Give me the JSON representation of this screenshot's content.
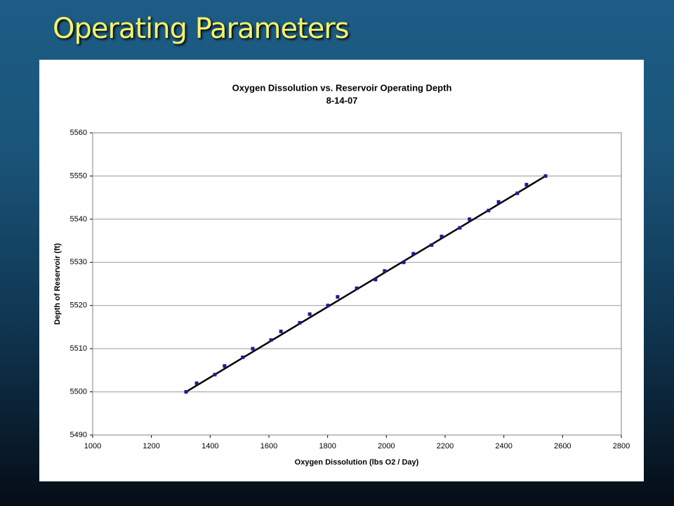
{
  "slide_title": "Operating Parameters",
  "chart_data": {
    "type": "scatter",
    "title": "Oxygen Dissolution vs. Reservoir Operating Depth",
    "subtitle": "8-14-07",
    "x_label": "Oxygen Dissolution  (lbs O2 / Day)",
    "y_label": "Depth of Reservoir  (ft)",
    "x": [
      1318,
      1354,
      1416,
      1449,
      1511,
      1545,
      1607,
      1641,
      1705,
      1739,
      1801,
      1834,
      1899,
      1963,
      1994,
      2059,
      2092,
      2154,
      2188,
      2250,
      2283,
      2348,
      2382,
      2446,
      2477,
      2542
    ],
    "values": [
      5500,
      5502,
      5504,
      5506,
      5508,
      5510,
      5512,
      5514,
      5516,
      5518,
      5520,
      5522,
      5524,
      5526,
      5528,
      5530,
      5532,
      5534,
      5536,
      5538,
      5540,
      5542,
      5544,
      5546,
      5548,
      5550
    ],
    "color": "#1c1c8f",
    "trendline": {
      "x": [
        1318,
        2542
      ],
      "values": [
        5500,
        5550
      ],
      "color": "#000000"
    },
    "xlim": [
      1000,
      2800
    ],
    "xticks": [
      1000,
      1200,
      1400,
      1600,
      1800,
      2000,
      2200,
      2400,
      2600,
      2800
    ],
    "ylim": [
      5490,
      5560
    ],
    "yticks": [
      5490,
      5500,
      5510,
      5520,
      5530,
      5540,
      5550,
      5560
    ],
    "grid": true
  }
}
